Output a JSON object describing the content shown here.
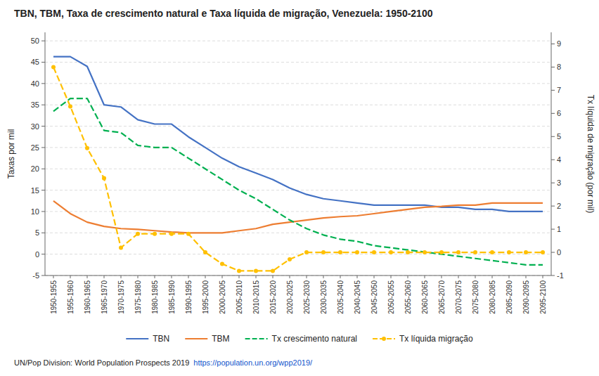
{
  "chart_data": {
    "type": "line",
    "title": "TBN, TBM, Taxa de crescimento natural e Taxa líquida de migração, Venezuela: 1950-2100",
    "ylabel": "Taxas por mil",
    "y2label": "Tx líquida de migração (por mil)",
    "annotations": [
      "UN/Pop Division: World Population Prospects 2019",
      "https://population.un.org/wpp2019/"
    ],
    "categories": [
      "1950-1955",
      "1955-1960",
      "1960-1965",
      "1965-1970",
      "1970-1975",
      "1975-1980",
      "1980-1985",
      "1985-1990",
      "1990-1995",
      "1995-2000",
      "2000-2005",
      "2005-2010",
      "2010-2015",
      "2015-2020",
      "2020-2025",
      "2025-2030",
      "2030-2035",
      "2035-2040",
      "2040-2045",
      "2045-2050",
      "2050-2055",
      "2055-2060",
      "2060-2065",
      "2065-2070",
      "2070-2075",
      "2075-2080",
      "2080-2085",
      "2085-2090",
      "2090-2095",
      "2095-2100"
    ],
    "series": [
      {
        "name": "TBN",
        "color": "#4472C4",
        "line_style": "solid",
        "values": [
          46.3,
          46.3,
          44.0,
          35.0,
          34.5,
          31.5,
          30.5,
          30.5,
          27.5,
          25.0,
          22.5,
          20.5,
          19.0,
          17.5,
          15.5,
          14.0,
          13.0,
          12.5,
          12.0,
          11.5,
          11.5,
          11.5,
          11.5,
          11.0,
          11.0,
          10.5,
          10.5,
          10.0,
          10.0,
          10.0
        ]
      },
      {
        "name": "TBM",
        "color": "#ED7D31",
        "line_style": "solid",
        "values": [
          12.5,
          9.5,
          7.5,
          6.5,
          6.0,
          5.8,
          5.5,
          5.2,
          5.0,
          5.0,
          5.0,
          5.5,
          6.0,
          7.0,
          7.5,
          8.0,
          8.5,
          8.8,
          9.0,
          9.5,
          10.0,
          10.5,
          11.0,
          11.2,
          11.5,
          11.5,
          12.0,
          12.0,
          12.0,
          12.0
        ]
      },
      {
        "name": "Tx crescimento natural",
        "color": "#00B050",
        "line_style": "dashed",
        "values": [
          33.5,
          36.5,
          36.5,
          29.0,
          28.5,
          25.5,
          25.0,
          25.0,
          22.5,
          20.0,
          17.5,
          15.0,
          13.0,
          10.5,
          8.0,
          6.0,
          4.5,
          3.5,
          3.0,
          2.0,
          1.5,
          1.0,
          0.5,
          0.0,
          -0.5,
          -1.0,
          -1.5,
          -2.0,
          -2.5,
          -2.5
        ]
      },
      {
        "name": "Tx líquida migração",
        "color": "#FFC000",
        "line_style": "dashed",
        "marker": "point",
        "axis": "y2",
        "values": [
          8.0,
          6.3,
          4.5,
          3.2,
          0.2,
          0.8,
          0.8,
          0.8,
          0.8,
          0.0,
          -0.5,
          -0.8,
          -0.8,
          -0.8,
          -0.3,
          0.0,
          0.0,
          0.0,
          0.0,
          0.0,
          0.0,
          0.0,
          0.0,
          0.0,
          0.0,
          0.0,
          0.0,
          0.0,
          0.0,
          0.0
        ]
      }
    ],
    "ylim": [
      -5,
      52
    ],
    "yticks": [
      -5,
      0,
      5,
      10,
      15,
      20,
      25,
      30,
      35,
      40,
      45,
      50
    ],
    "y2lim": [
      -1,
      9.5
    ],
    "y2ticks": [
      -1,
      0,
      1,
      2,
      3,
      4,
      5,
      6,
      7,
      8,
      9
    ],
    "grid": true,
    "legend": "bottom"
  }
}
